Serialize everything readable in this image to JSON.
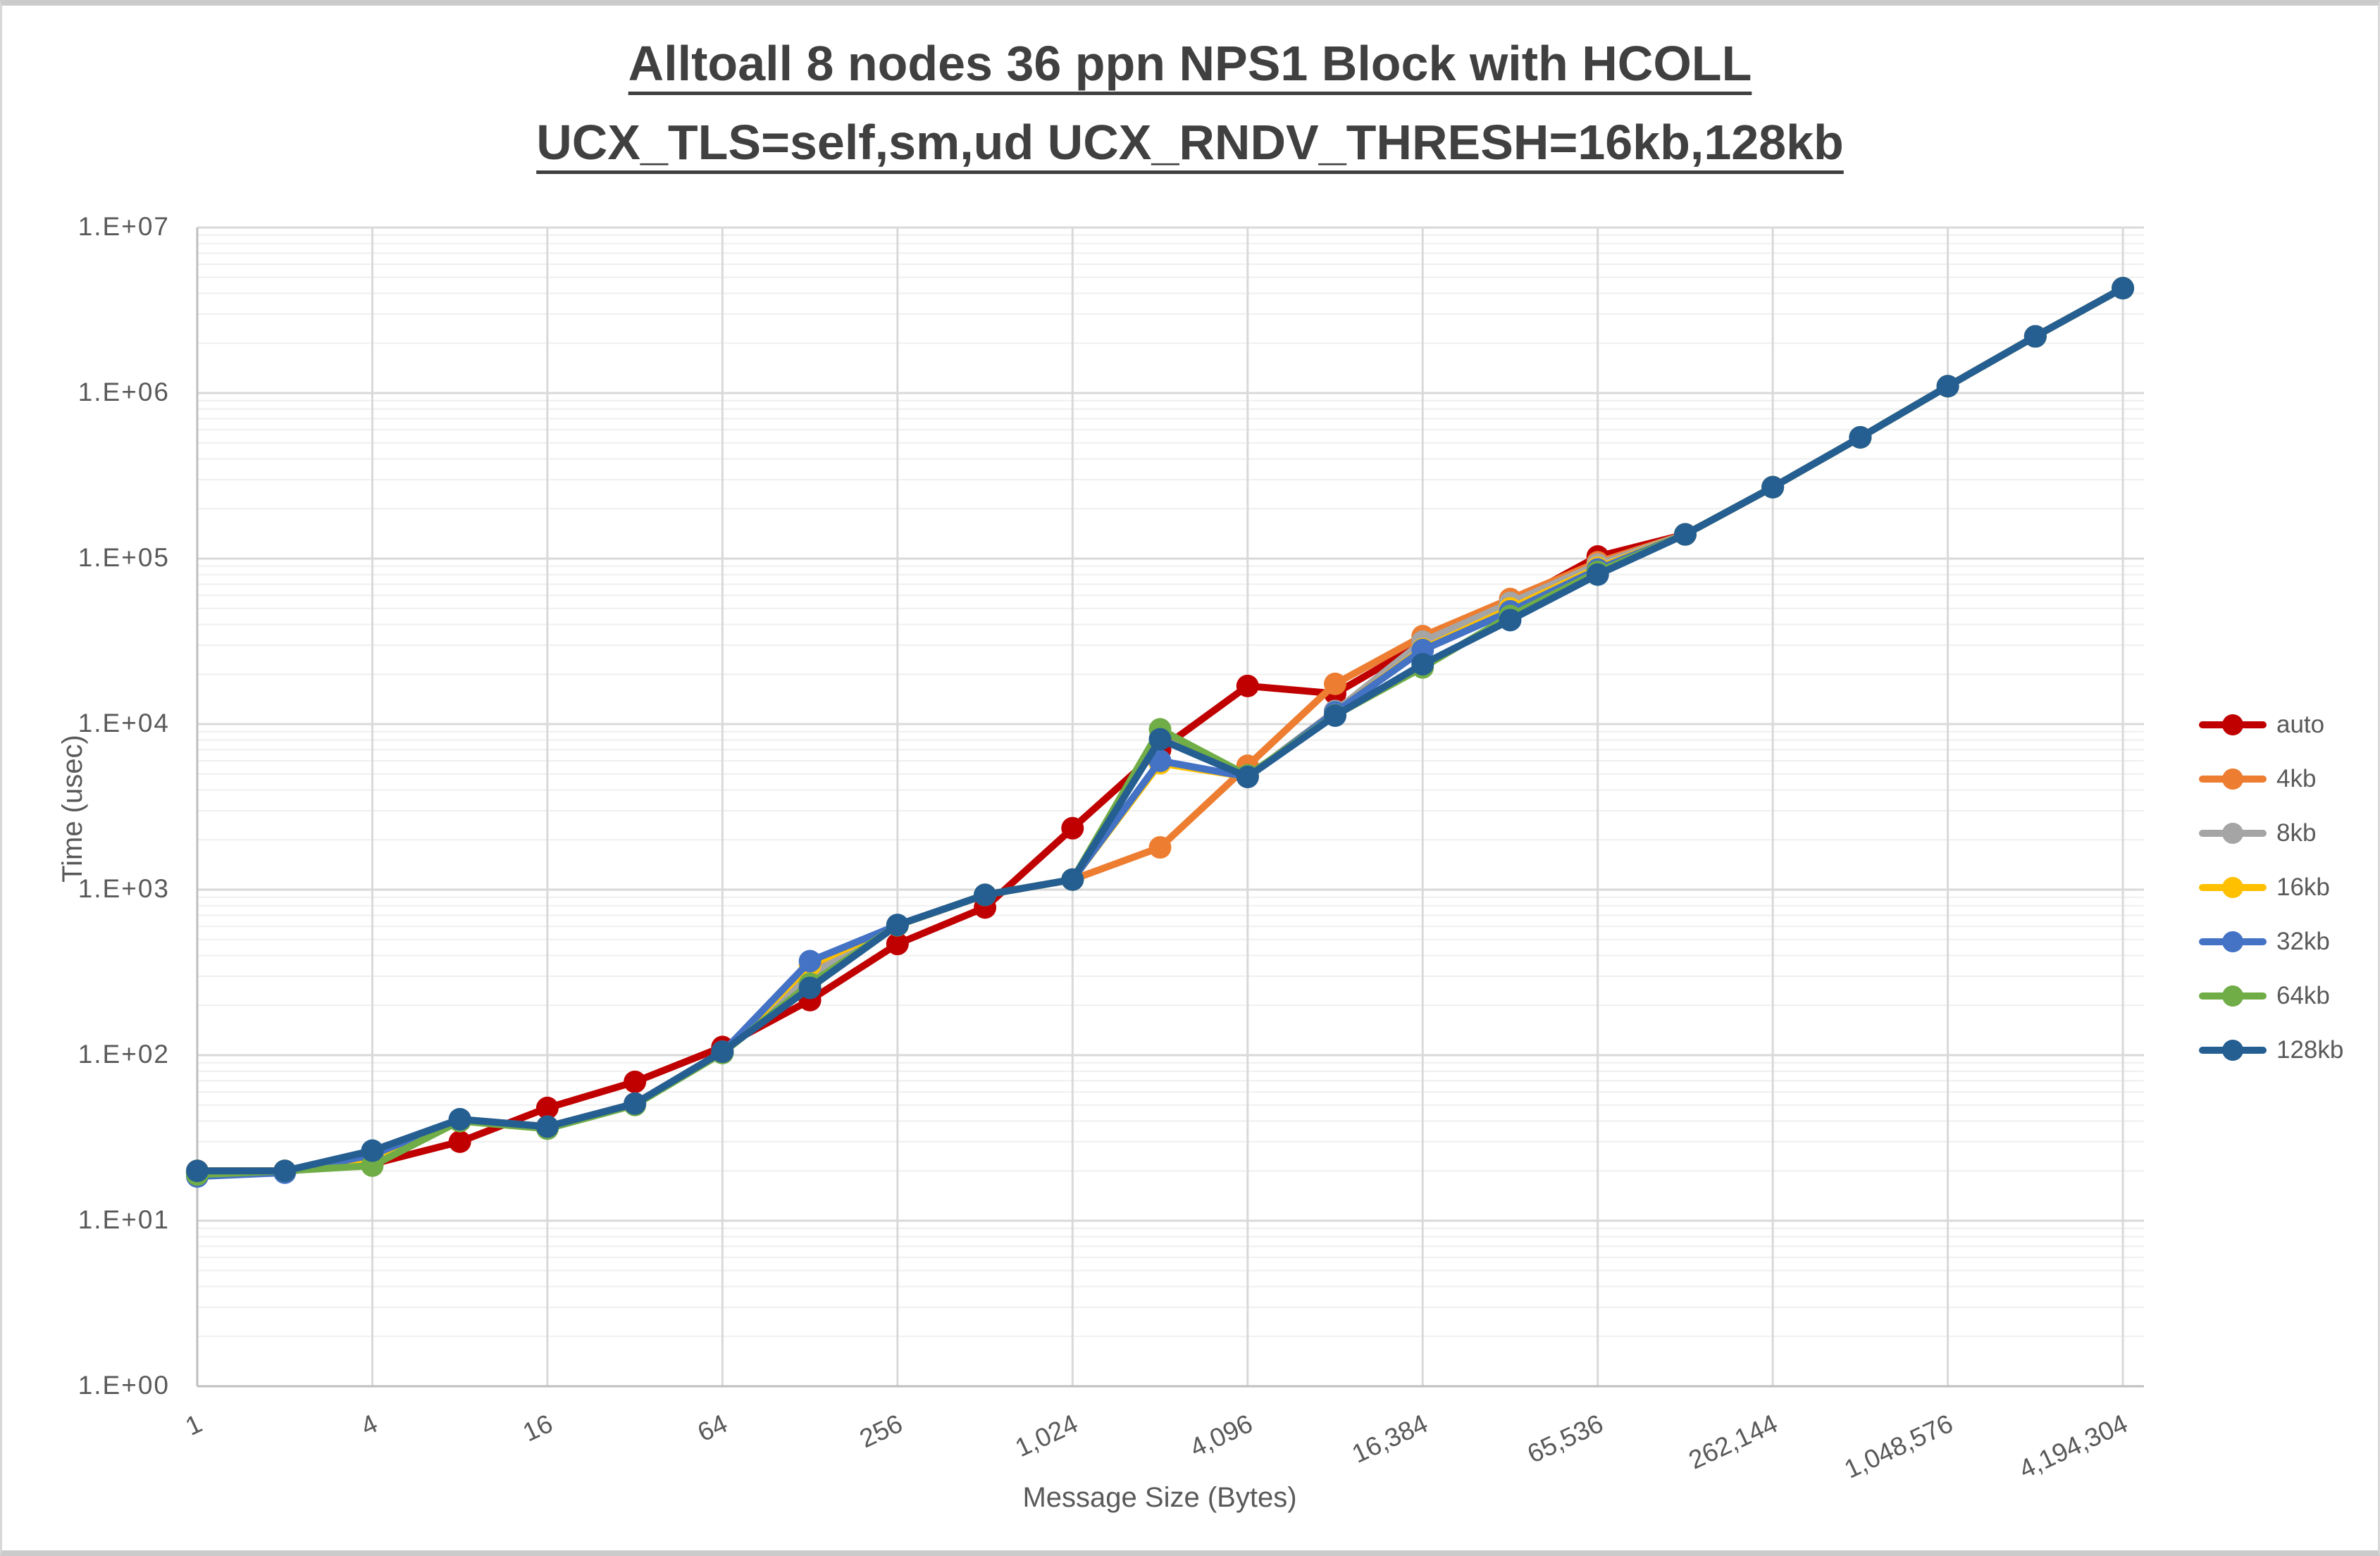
{
  "title": {
    "line1": "Alltoall 8 nodes 36 ppn NPS1 Block with HCOLL",
    "line2": "UCX_TLS=self,sm,ud UCX_RNDV_THRESH=16kb,128kb"
  },
  "y_axis": {
    "title": "Time (usec)",
    "ticks": [
      {
        "label": "1.E+07",
        "exp": 7
      },
      {
        "label": "1.E+06",
        "exp": 6
      },
      {
        "label": "1.E+05",
        "exp": 5
      },
      {
        "label": "1.E+04",
        "exp": 4
      },
      {
        "label": "1.E+03",
        "exp": 3
      },
      {
        "label": "1.E+02",
        "exp": 2
      },
      {
        "label": "1.E+01",
        "exp": 1
      },
      {
        "label": "1.E+00",
        "exp": 0
      }
    ]
  },
  "x_axis": {
    "title": "Message Size (Bytes)",
    "ticks": [
      {
        "label": "1",
        "pow2": 0
      },
      {
        "label": "4",
        "pow2": 2
      },
      {
        "label": "16",
        "pow2": 4
      },
      {
        "label": "64",
        "pow2": 6
      },
      {
        "label": "256",
        "pow2": 8
      },
      {
        "label": "1,024",
        "pow2": 10
      },
      {
        "label": "4,096",
        "pow2": 12
      },
      {
        "label": "16,384",
        "pow2": 14
      },
      {
        "label": "65,536",
        "pow2": 16
      },
      {
        "label": "262,144",
        "pow2": 18
      },
      {
        "label": "1,048,576",
        "pow2": 20
      },
      {
        "label": "4,194,304",
        "pow2": 22
      }
    ]
  },
  "style": {
    "title_color": "#404040",
    "text_color": "#595959",
    "major_grid_color": "#d9d9d9",
    "minor_grid_color": "#efefef",
    "axis_line_color": "#bfbfbf",
    "background": "#ffffff",
    "line_width": 10,
    "marker_radius": 16
  },
  "chart_data": {
    "type": "line",
    "title": "Alltoall 8 nodes 36 ppn NPS1 Block with HCOLL UCX_TLS=self,sm,ud UCX_RNDV_THRESH=16kb,128kb",
    "xlabel": "Message Size (Bytes)",
    "ylabel": "Time (usec)",
    "xscale": "log2",
    "yscale": "log10",
    "ylim": [
      1,
      10000000
    ],
    "grid": true,
    "legend_position": "right",
    "categories": [
      "1",
      "4",
      "16",
      "64",
      "256",
      "1,024",
      "4,096",
      "16,384",
      "65,536",
      "262,144",
      "1,048,576",
      "4,194,304"
    ],
    "x_values": [
      1,
      2,
      4,
      8,
      16,
      32,
      64,
      128,
      256,
      512,
      1024,
      2048,
      4096,
      8192,
      16384,
      32768,
      65536,
      131072,
      262144,
      524288,
      1048576,
      2097152,
      4194304
    ],
    "series": [
      {
        "name": "auto",
        "color": "#C00000",
        "values": [
          19.5,
          20,
          22,
          30,
          48,
          69,
          112,
          215,
          470,
          780,
          2350,
          7000,
          17000,
          15300,
          31000,
          53000,
          103000,
          140000,
          270000,
          540000,
          1100000,
          2200000,
          4300000
        ]
      },
      {
        "name": "4kb",
        "color": "#ED7D31",
        "values": [
          20,
          20,
          24,
          40,
          37,
          51,
          105,
          320,
          610,
          930,
          1150,
          1800,
          5600,
          17500,
          34000,
          57000,
          95000,
          140000,
          270000,
          540000,
          1100000,
          2200000,
          4300000
        ]
      },
      {
        "name": "8kb",
        "color": "#A5A5A5",
        "values": [
          20,
          20,
          25,
          41,
          37,
          51,
          105,
          305,
          610,
          930,
          1150,
          8200,
          4800,
          12000,
          31500,
          54000,
          92000,
          140000,
          270000,
          540000,
          1100000,
          2200000,
          4300000
        ]
      },
      {
        "name": "16kb",
        "color": "#FFC000",
        "values": [
          20,
          20,
          24,
          40,
          36,
          51,
          104,
          350,
          610,
          930,
          1150,
          5800,
          4800,
          11800,
          28400,
          50000,
          88000,
          140000,
          270000,
          540000,
          1100000,
          2200000,
          4300000
        ]
      },
      {
        "name": "32kb",
        "color": "#4472C4",
        "values": [
          18.5,
          19.5,
          25,
          41,
          36,
          51,
          104,
          370,
          610,
          930,
          1150,
          6000,
          4800,
          11800,
          28000,
          48000,
          86000,
          140000,
          270000,
          540000,
          1100000,
          2200000,
          4300000
        ]
      },
      {
        "name": "64kb",
        "color": "#70AD47",
        "values": [
          19,
          20,
          21.5,
          40,
          36,
          50,
          103,
          270,
          610,
          930,
          1150,
          9300,
          4900,
          11300,
          22000,
          45000,
          83000,
          140000,
          270000,
          540000,
          1100000,
          2200000,
          4300000
        ]
      },
      {
        "name": "128kb",
        "color": "#255E91",
        "values": [
          20,
          20,
          26.5,
          41,
          37,
          51,
          105,
          255,
          612,
          930,
          1150,
          8100,
          4800,
          11250,
          23000,
          42500,
          80000,
          140000,
          270000,
          540000,
          1100000,
          2200000,
          4300000
        ]
      }
    ]
  }
}
